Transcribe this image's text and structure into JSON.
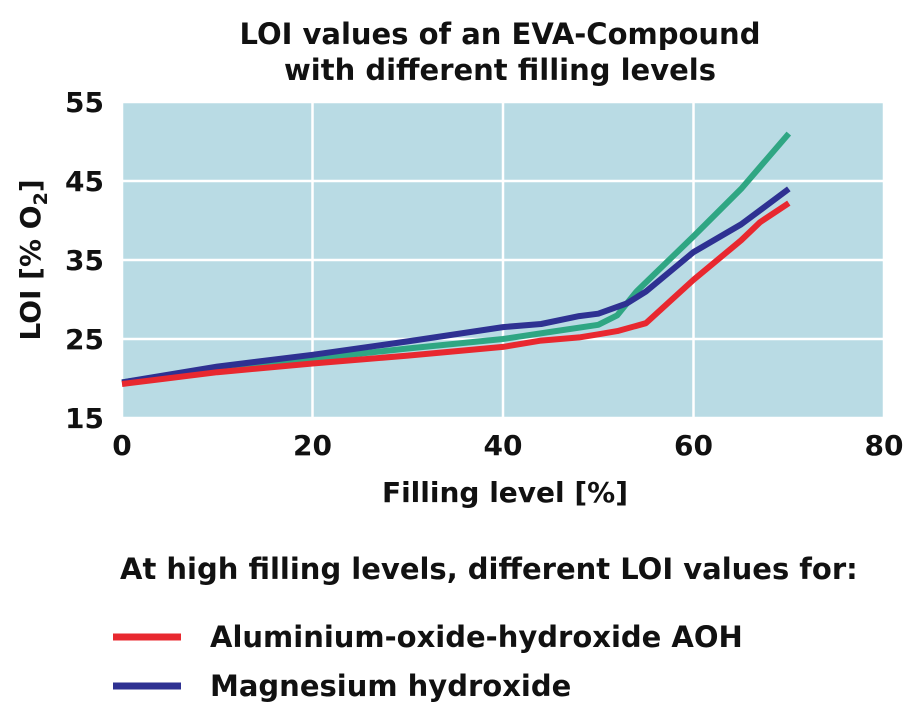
{
  "chart_data": {
    "type": "line",
    "title": [
      "LOI values of an EVA-Compound",
      "with different filling levels"
    ],
    "xlabel": "Filling level [%]",
    "ylabel": {
      "main": "LOI [% O",
      "sub": "2",
      "close": "]"
    },
    "xlim": [
      0,
      80
    ],
    "ylim": [
      15,
      55
    ],
    "xticks": [
      0,
      20,
      40,
      60,
      80
    ],
    "yticks": [
      15,
      25,
      35,
      45,
      55
    ],
    "grid": true,
    "plot_background": "#b9dbe4",
    "legend_heading": "At high filling levels, different LOI values for:",
    "series": [
      {
        "name": "",
        "color": "#2fa683",
        "x": [
          0,
          10,
          20,
          30,
          40,
          45,
          50,
          52,
          54,
          60,
          65,
          70
        ],
        "y": [
          19.5,
          21.2,
          22.5,
          23.8,
          25.0,
          25.9,
          26.8,
          28.0,
          31.0,
          38.0,
          44.0,
          51.0
        ]
      },
      {
        "name": "Magnesium hydroxide",
        "color": "#2e3192",
        "x": [
          0,
          10,
          20,
          30,
          40,
          44,
          48,
          50,
          53,
          55,
          60,
          65,
          70
        ],
        "y": [
          19.5,
          21.5,
          23.0,
          24.7,
          26.5,
          26.9,
          27.9,
          28.2,
          29.5,
          31.0,
          36.0,
          39.5,
          44.0
        ]
      },
      {
        "name": "Aluminium-oxide-hydroxide AOH",
        "color": "#e8282f",
        "x": [
          0,
          10,
          20,
          30,
          40,
          44,
          48,
          50,
          52,
          55,
          60,
          65,
          67,
          70
        ],
        "y": [
          19.3,
          20.8,
          21.9,
          22.9,
          24.0,
          24.8,
          25.2,
          25.6,
          26.0,
          27.0,
          32.5,
          37.5,
          39.8,
          42.2
        ]
      }
    ],
    "legend": [
      {
        "name": "Aluminium-oxide-hydroxide AOH",
        "color": "#e8282f"
      },
      {
        "name": "Magnesium hydroxide",
        "color": "#2e3192"
      }
    ]
  }
}
